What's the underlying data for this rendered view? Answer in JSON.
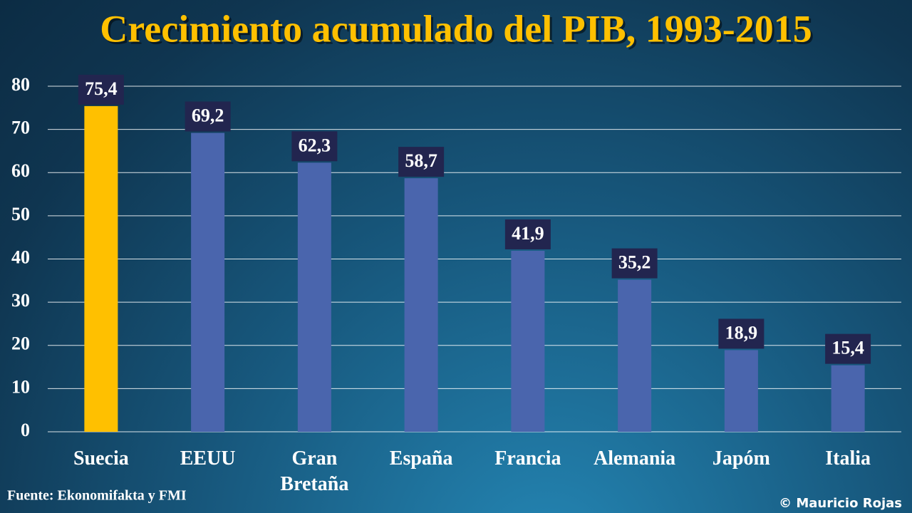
{
  "chart_data": {
    "type": "bar",
    "title": "Crecimiento acumulado del PIB, 1993-2015",
    "categories": [
      "Suecia",
      "EEUU",
      "Gran Bretaña",
      "España",
      "Francia",
      "Alemania",
      "Japóm",
      "Italia"
    ],
    "values": [
      75.4,
      69.2,
      62.3,
      58.7,
      41.9,
      35.2,
      18.9,
      15.4
    ],
    "value_labels": [
      "75,4",
      "69,2",
      "62,3",
      "58,7",
      "41,9",
      "35,2",
      "18,9",
      "15,4"
    ],
    "colors": [
      "#ffc000",
      "#4a65ad",
      "#4a65ad",
      "#4a65ad",
      "#4a65ad",
      "#4a65ad",
      "#4a65ad",
      "#4a65ad"
    ],
    "ylim": [
      0,
      80
    ],
    "yticks": [
      0,
      10,
      20,
      30,
      40,
      50,
      60,
      70,
      80
    ],
    "grid": true,
    "source": "Fuente: Ekonomifakta y FMI",
    "credit": "© Mauricio Rojas"
  }
}
